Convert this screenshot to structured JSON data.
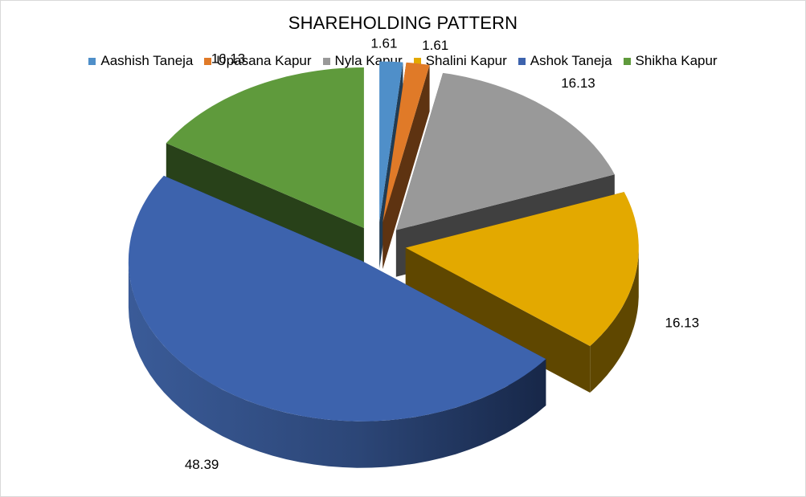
{
  "chart_data": {
    "type": "pie",
    "style": "3d-exploded",
    "title": "SHAREHOLDING PATTERN",
    "legend_position": "top",
    "slices": [
      {
        "name": "Aashish Taneja",
        "value": 1.61,
        "label": "1.61",
        "color": "#4f8fc9"
      },
      {
        "name": "Upasana Kapur",
        "value": 1.61,
        "label": "1.61",
        "color": "#e07a28"
      },
      {
        "name": "Nyla Kapur",
        "value": 16.13,
        "label": "16.13",
        "color": "#999999"
      },
      {
        "name": "Shalini Kapur",
        "value": 16.13,
        "label": "16.13",
        "color": "#e3a900"
      },
      {
        "name": "Ashok Taneja",
        "value": 48.39,
        "label": "48.39",
        "color": "#3d63ad"
      },
      {
        "name": "Shikha Kapur",
        "value": 16.13,
        "label": "16.13",
        "color": "#5f9a3c"
      }
    ]
  }
}
